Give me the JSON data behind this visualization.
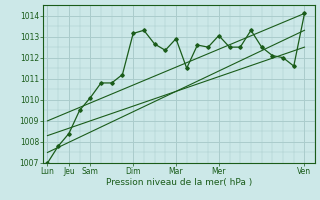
{
  "background_color": "#cce8e8",
  "grid_color": "#aacccc",
  "line_color": "#1a5c1a",
  "ylim": [
    1007,
    1014.5
  ],
  "yticks": [
    1007,
    1008,
    1009,
    1010,
    1011,
    1012,
    1013,
    1014
  ],
  "xlabel": "Pression niveau de la mer( hPa )",
  "xtick_labels": [
    "Lun",
    "Jeu",
    "Sam",
    "Dim",
    "Mar",
    "Mer",
    "Ven"
  ],
  "xtick_positions": [
    0,
    1,
    2,
    4,
    6,
    8,
    12
  ],
  "label_fontsize": 6.5,
  "tick_fontsize": 5.5,
  "main_series_x": [
    0,
    0.5,
    1.0,
    1.5,
    2.0,
    2.5,
    3.0,
    3.5,
    4.0,
    4.5,
    5.0,
    5.5,
    6.0,
    6.5,
    7.0,
    7.5,
    8.0,
    8.5,
    9.0,
    9.5,
    10.0,
    10.5,
    11.0,
    11.5,
    12.0
  ],
  "main_series_y": [
    1007.0,
    1007.8,
    1008.4,
    1009.5,
    1010.1,
    1010.8,
    1010.8,
    1011.2,
    1013.15,
    1013.3,
    1012.65,
    1012.35,
    1012.9,
    1011.5,
    1012.6,
    1012.5,
    1013.05,
    1012.5,
    1012.5,
    1013.3,
    1012.5,
    1012.1,
    1012.0,
    1011.6,
    1014.1
  ],
  "trend1_x": [
    0,
    12
  ],
  "trend1_y": [
    1007.5,
    1013.3
  ],
  "trend2_x": [
    0,
    12
  ],
  "trend2_y": [
    1008.3,
    1012.5
  ],
  "trend3_x": [
    0,
    12
  ],
  "trend3_y": [
    1009.0,
    1014.1
  ],
  "xlim": [
    -0.2,
    12.4
  ]
}
